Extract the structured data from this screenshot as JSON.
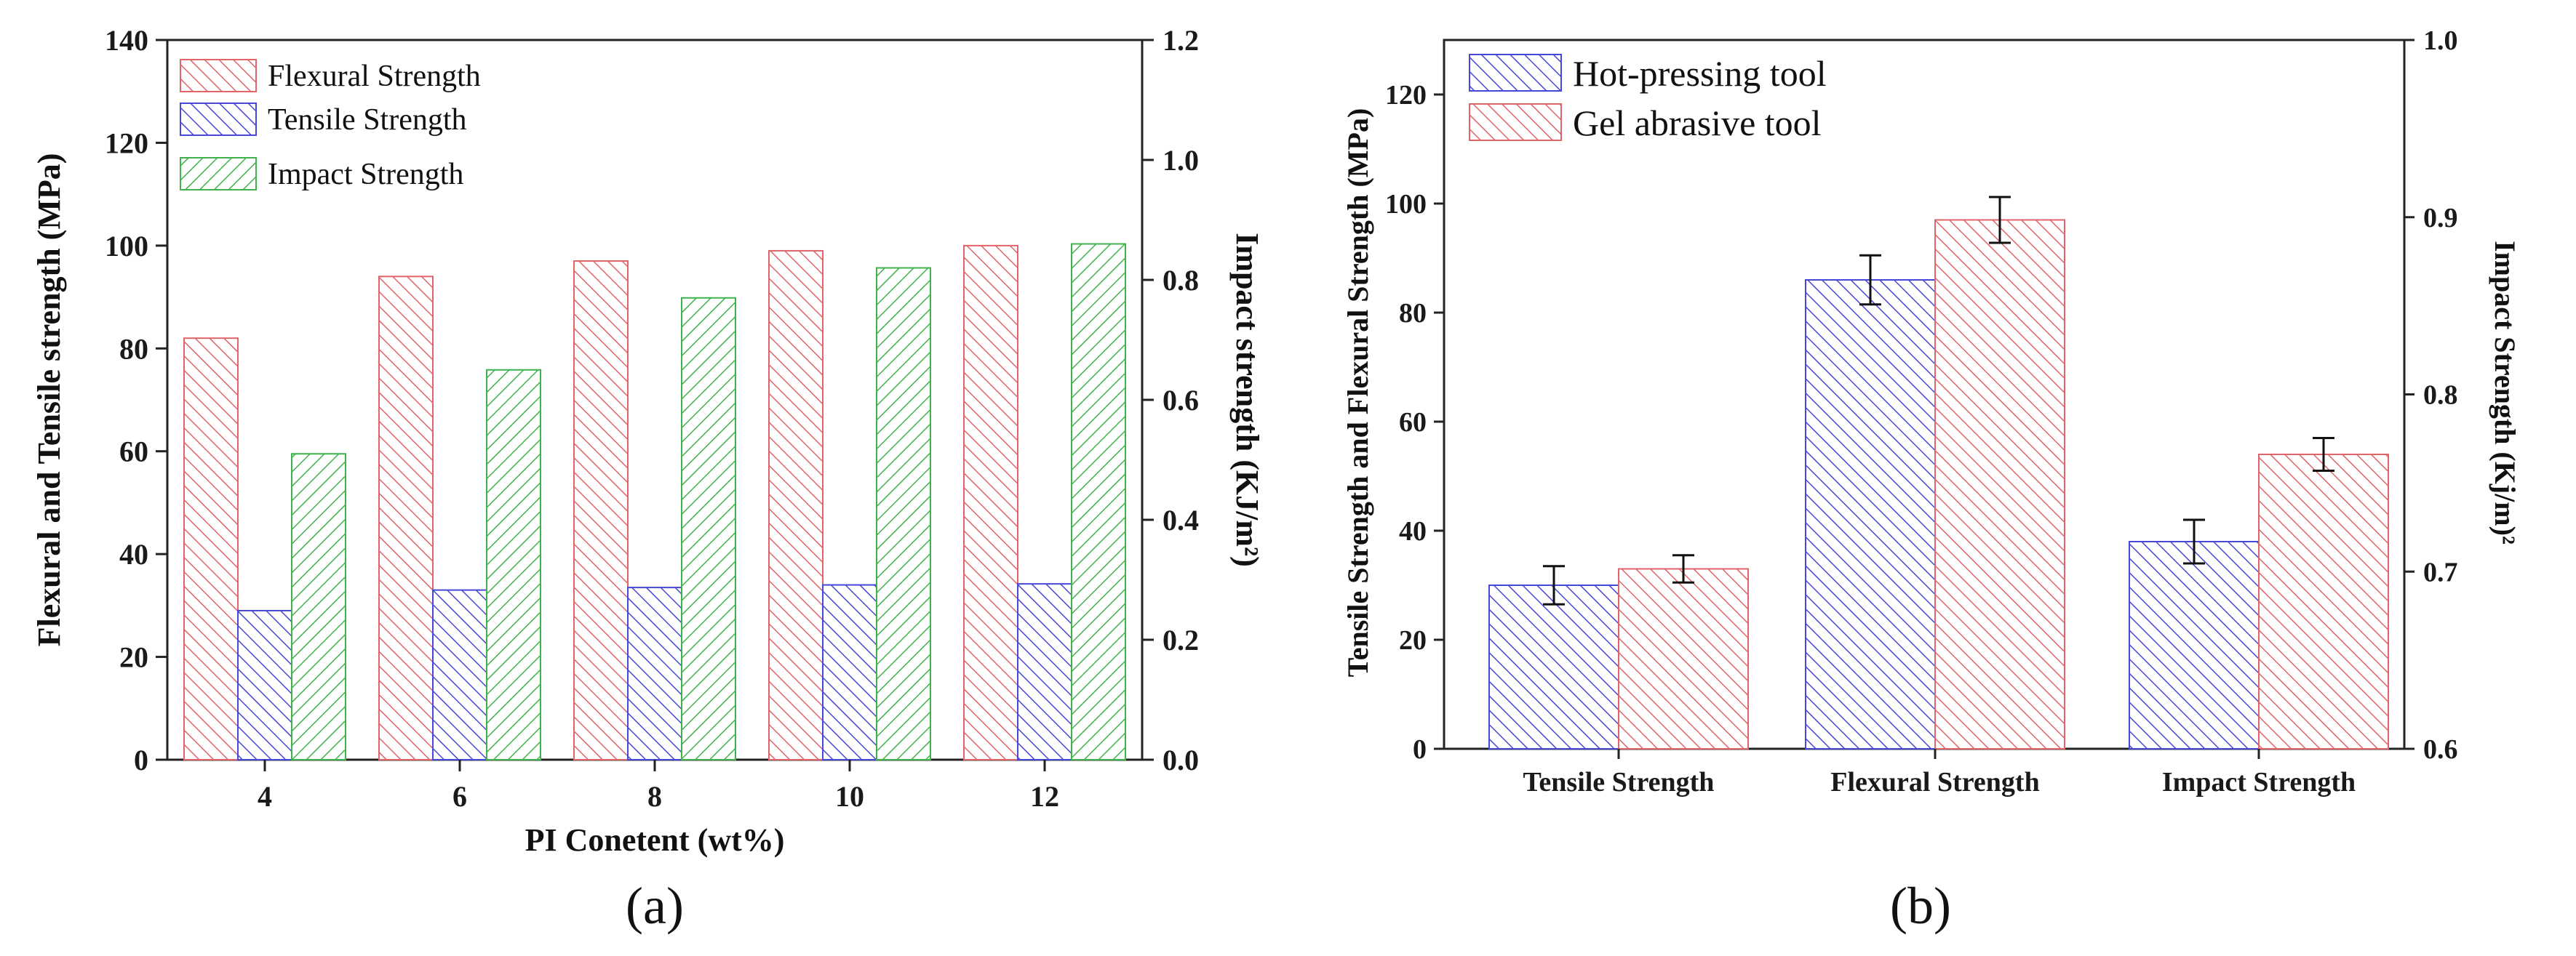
{
  "colors": {
    "red": "#e0646a",
    "blue": "#4848d8",
    "green": "#3fb24c",
    "axis": "#222222"
  },
  "chart_data": [
    {
      "type": "bar",
      "panel_label": "(a)",
      "categories": [
        "4",
        "6",
        "8",
        "10",
        "12"
      ],
      "xlabel": "PI Conetent (wt%)",
      "ylabel": "Flexural and Tensile strength (MPa)",
      "ylabel2": "Impact strength (KJ/m²)",
      "ylim": [
        0,
        140
      ],
      "yticks": [
        "0",
        "20",
        "40",
        "60",
        "80",
        "100",
        "120",
        "140"
      ],
      "ylim2": [
        0,
        1.2
      ],
      "yticks2": [
        "0.0",
        "0.2",
        "0.4",
        "0.6",
        "0.8",
        "1.0",
        "1.2"
      ],
      "legend_position": "top-left",
      "series": [
        {
          "name": "Flexural Strength",
          "axis": "left",
          "color": "red",
          "hatch": "up",
          "values": [
            82,
            94,
            97,
            99,
            100
          ]
        },
        {
          "name": "Tensile Strength",
          "axis": "left",
          "color": "blue",
          "hatch": "up",
          "values": [
            29,
            33,
            33.5,
            34,
            34.2
          ]
        },
        {
          "name": "Impact Strength",
          "axis": "right",
          "color": "green",
          "hatch": "down",
          "values": [
            0.51,
            0.65,
            0.77,
            0.82,
            0.86
          ]
        }
      ]
    },
    {
      "type": "bar",
      "panel_label": "(b)",
      "categories": [
        "Tensile Strength",
        "Flexural Strength",
        "Impact Strength"
      ],
      "ylabel": "Tensile Strength and Flexural Strength (MPa)",
      "ylabel2": "Impact Strength (Kj/m)²",
      "ylim": [
        0,
        130
      ],
      "yticks": [
        "0",
        "20",
        "40",
        "60",
        "80",
        "100",
        "120"
      ],
      "ylim2": [
        0.6,
        1.0
      ],
      "yticks2": [
        "0.6",
        "0.7",
        "0.8",
        "0.9",
        "1.0"
      ],
      "legend_position": "top-left",
      "series": [
        {
          "name": "Hot-pressing tool",
          "color": "blue",
          "values": [
            30,
            86,
            38
          ],
          "errors": [
            3.5,
            4.5,
            4
          ]
        },
        {
          "name": "Gel abrasive tool",
          "color": "red",
          "values": [
            33,
            97,
            54
          ],
          "errors": [
            2.5,
            4.2,
            3
          ]
        }
      ]
    }
  ]
}
